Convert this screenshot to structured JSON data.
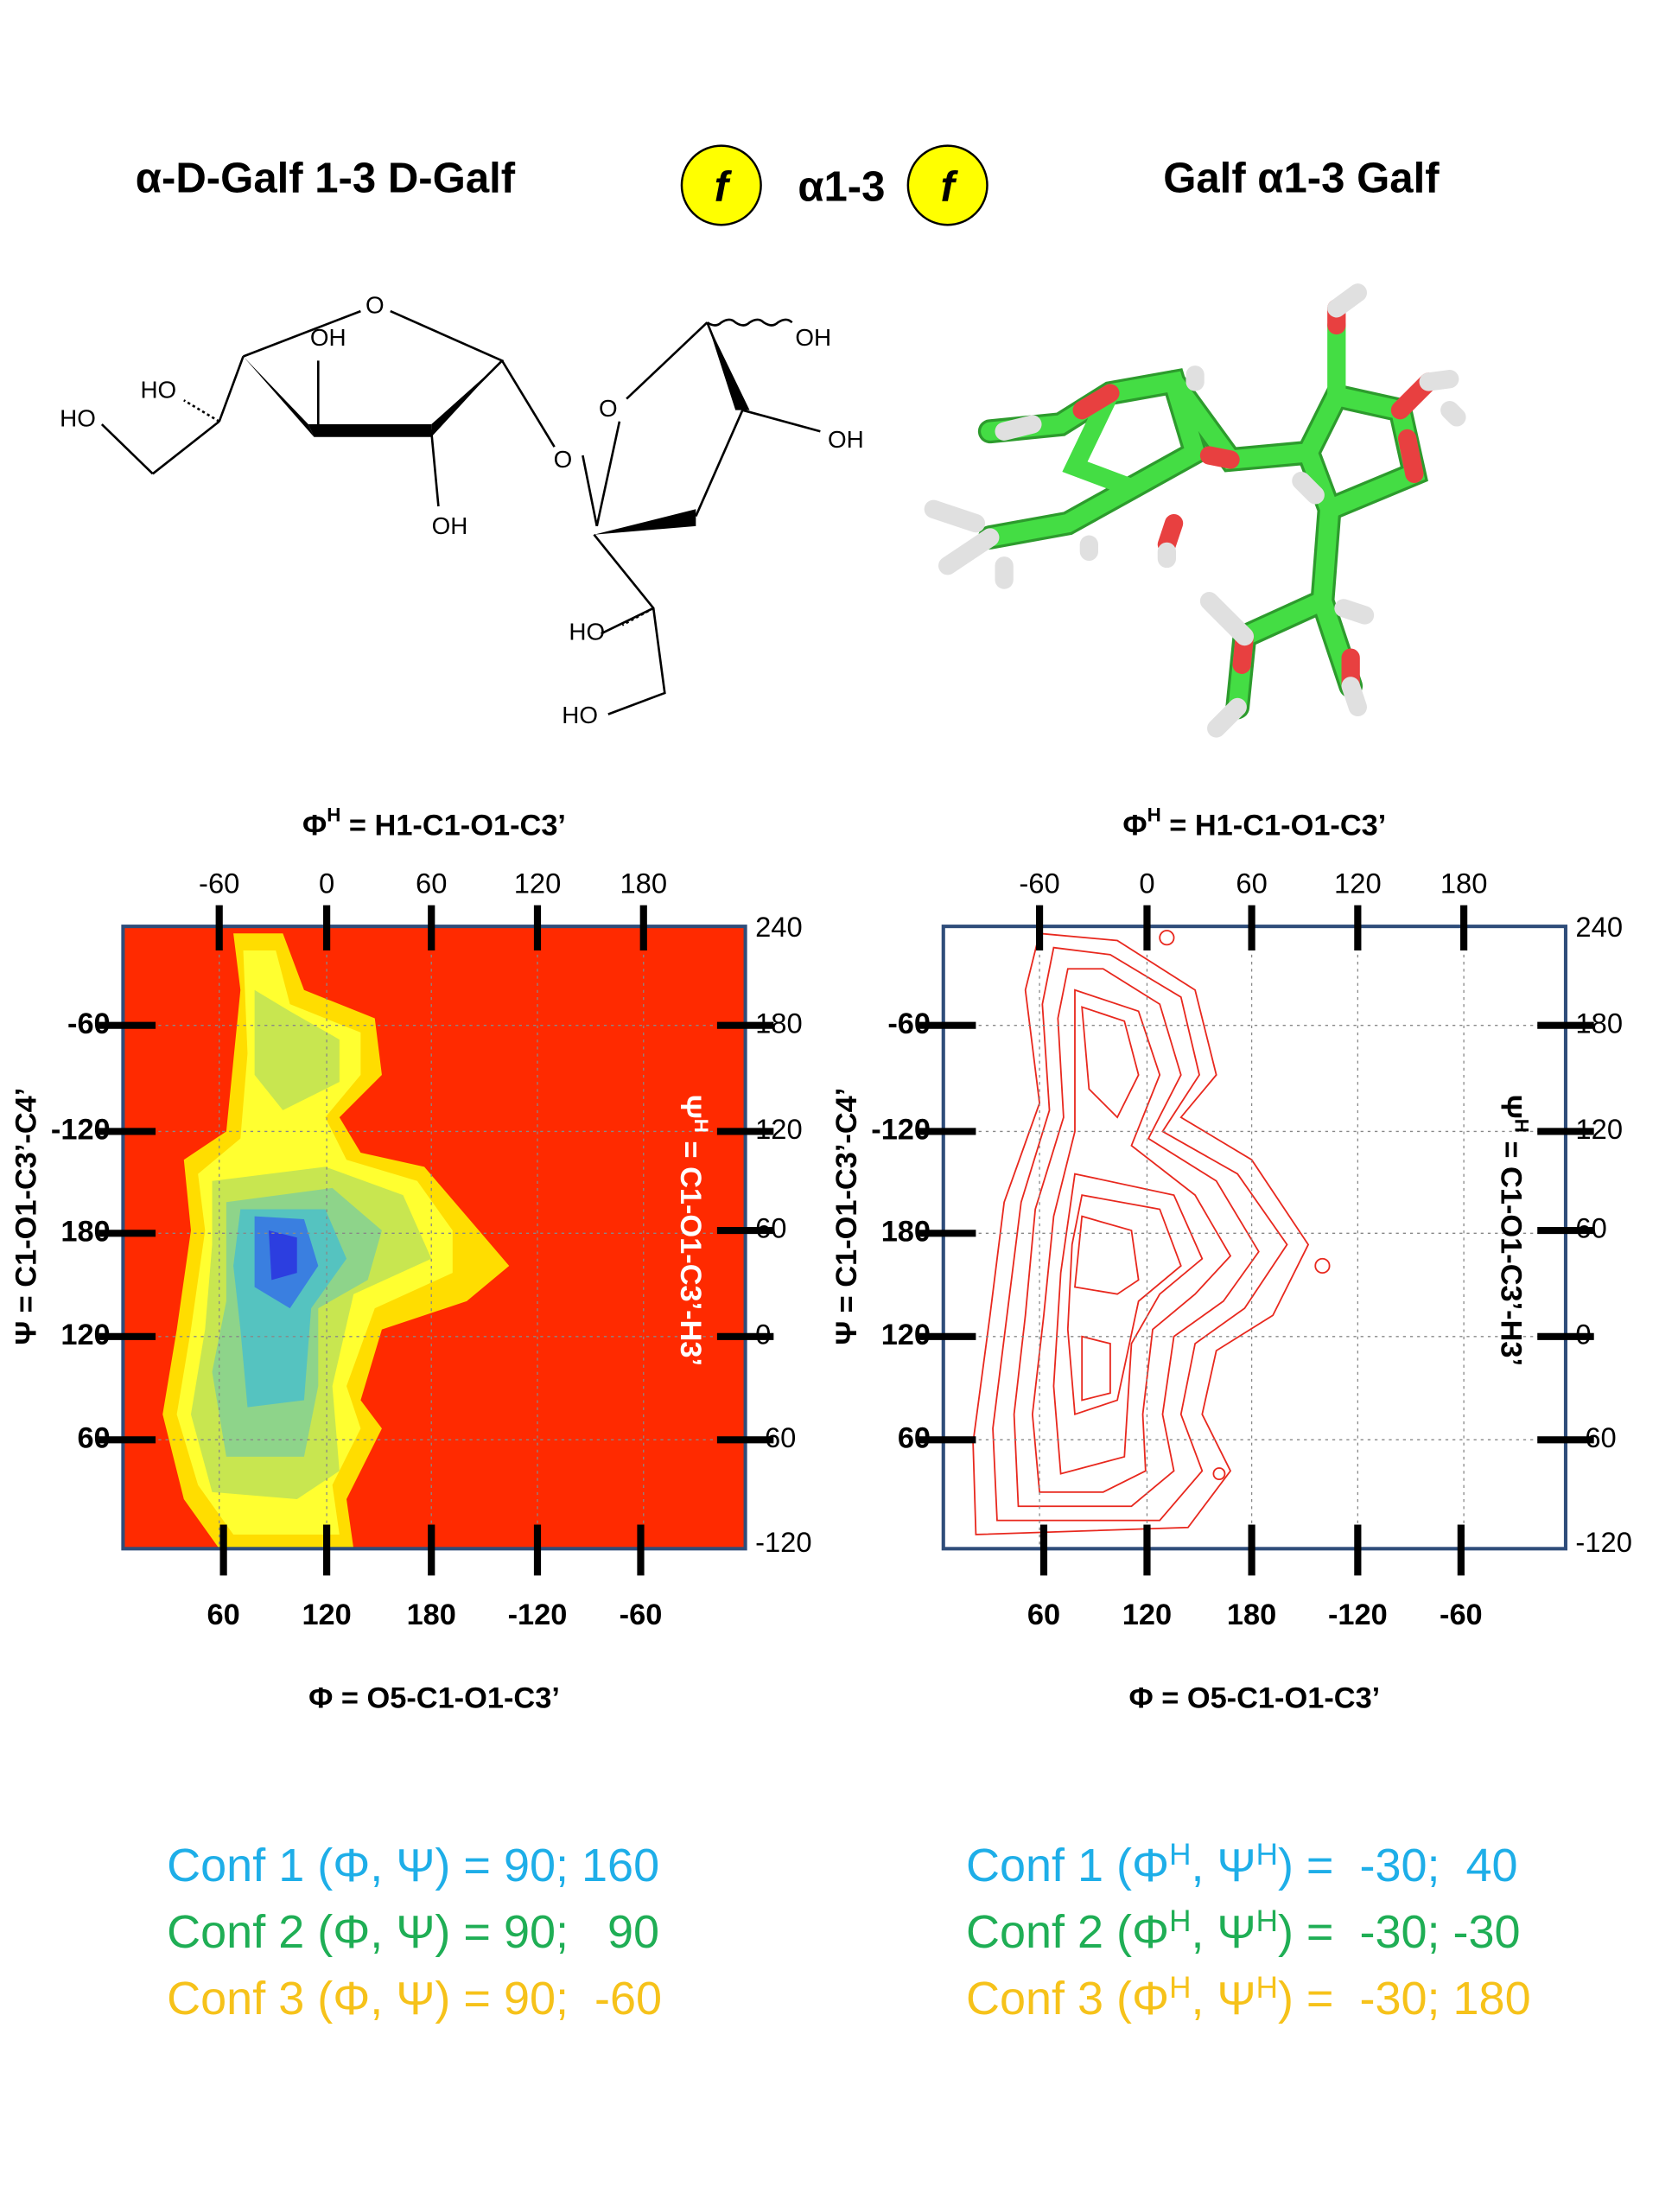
{
  "figure": {
    "title_left": "α-D-Galf 1-3 D-Galf",
    "title_middle": {
      "symbol_1": "f",
      "linkage": "α1-3",
      "symbol_2": "f"
    },
    "title_right": "Galf α1-3 Galf",
    "structure": {
      "labels": [
        "O",
        "OH",
        "HO",
        "HO",
        "OH",
        "O",
        "O",
        "OH",
        "OH",
        "HO",
        "HO"
      ]
    },
    "plots": [
      {
        "top_axis_label": [
          {
            "text": "Φ"
          },
          {
            "text": "H",
            "sup": true
          },
          {
            "text": " = H1-C1-O1-C3’"
          }
        ],
        "top_ticks": [
          "-60",
          "0",
          "60",
          "120",
          "180"
        ],
        "left_ticks": [
          "-60",
          "-120",
          "180",
          "120",
          "60"
        ],
        "right_ticks": [
          "240",
          "180",
          "120",
          "60",
          "0",
          "-60",
          "-120"
        ],
        "bottom_ticks": [
          "60",
          "120",
          "180",
          "-120",
          "-60"
        ],
        "left_axis_label": [
          {
            "text": "Ψ = C1-O1-C3’-C4’"
          }
        ],
        "right_axis_label": [
          {
            "text": "Ψ"
          },
          {
            "text": "H",
            "sup": true
          },
          {
            "text": " = C1-O1-C3’-H3’"
          }
        ],
        "bottom_axis_label": [
          {
            "text": "Φ = O5-C1-O1-C3’"
          }
        ]
      },
      {
        "top_axis_label": [
          {
            "text": "Φ"
          },
          {
            "text": "H",
            "sup": true
          },
          {
            "text": " = H1-C1-O1-C3’"
          }
        ],
        "top_ticks": [
          "-60",
          "0",
          "60",
          "120",
          "180"
        ],
        "left_ticks": [
          "-60",
          "-120",
          "180",
          "120",
          "60"
        ],
        "right_ticks": [
          "240",
          "180",
          "120",
          "60",
          "0",
          "-60",
          "-120"
        ],
        "bottom_ticks": [
          "60",
          "120",
          "180",
          "-120",
          "-60"
        ],
        "left_axis_label": [
          {
            "text": "Ψ = C1-O1-C3’-C4’"
          }
        ],
        "right_axis_label": [
          {
            "text": "Ψ"
          },
          {
            "text": "H",
            "sup": true
          },
          {
            "text": " = C1-O1-C3’-H3’"
          }
        ],
        "bottom_axis_label": [
          {
            "text": "Φ = O5-C1-O1-C3’"
          }
        ]
      }
    ],
    "conformations_left": [
      {
        "color": "#1eaee8",
        "segments": [
          {
            "text": "Conf 1 (Φ, Ψ) = 90; 160"
          }
        ]
      },
      {
        "color": "#1fae55",
        "segments": [
          {
            "text": "Conf 2 (Φ, Ψ) = 90;   90"
          }
        ]
      },
      {
        "color": "#f6c21a",
        "segments": [
          {
            "text": "Conf 3 (Φ, Ψ) = 90;  -60"
          }
        ]
      }
    ],
    "conformations_right": [
      {
        "color": "#1eaee8",
        "segments": [
          {
            "text": "Conf 1 (Φ"
          },
          {
            "text": "H",
            "sup": true
          },
          {
            "text": ", Ψ"
          },
          {
            "text": "H",
            "sup": true
          },
          {
            "text": ") =  -30;  40"
          }
        ]
      },
      {
        "color": "#1fae55",
        "segments": [
          {
            "text": "Conf 2 (Φ"
          },
          {
            "text": "H",
            "sup": true
          },
          {
            "text": ", Ψ"
          },
          {
            "text": "H",
            "sup": true
          },
          {
            "text": ") =  -30; -30"
          }
        ]
      },
      {
        "color": "#f6c21a",
        "segments": [
          {
            "text": "Conf 3 (Φ"
          },
          {
            "text": "H",
            "sup": true
          },
          {
            "text": ", Ψ"
          },
          {
            "text": "H",
            "sup": true
          },
          {
            "text": ") =  -30; 180"
          }
        ]
      }
    ]
  }
}
